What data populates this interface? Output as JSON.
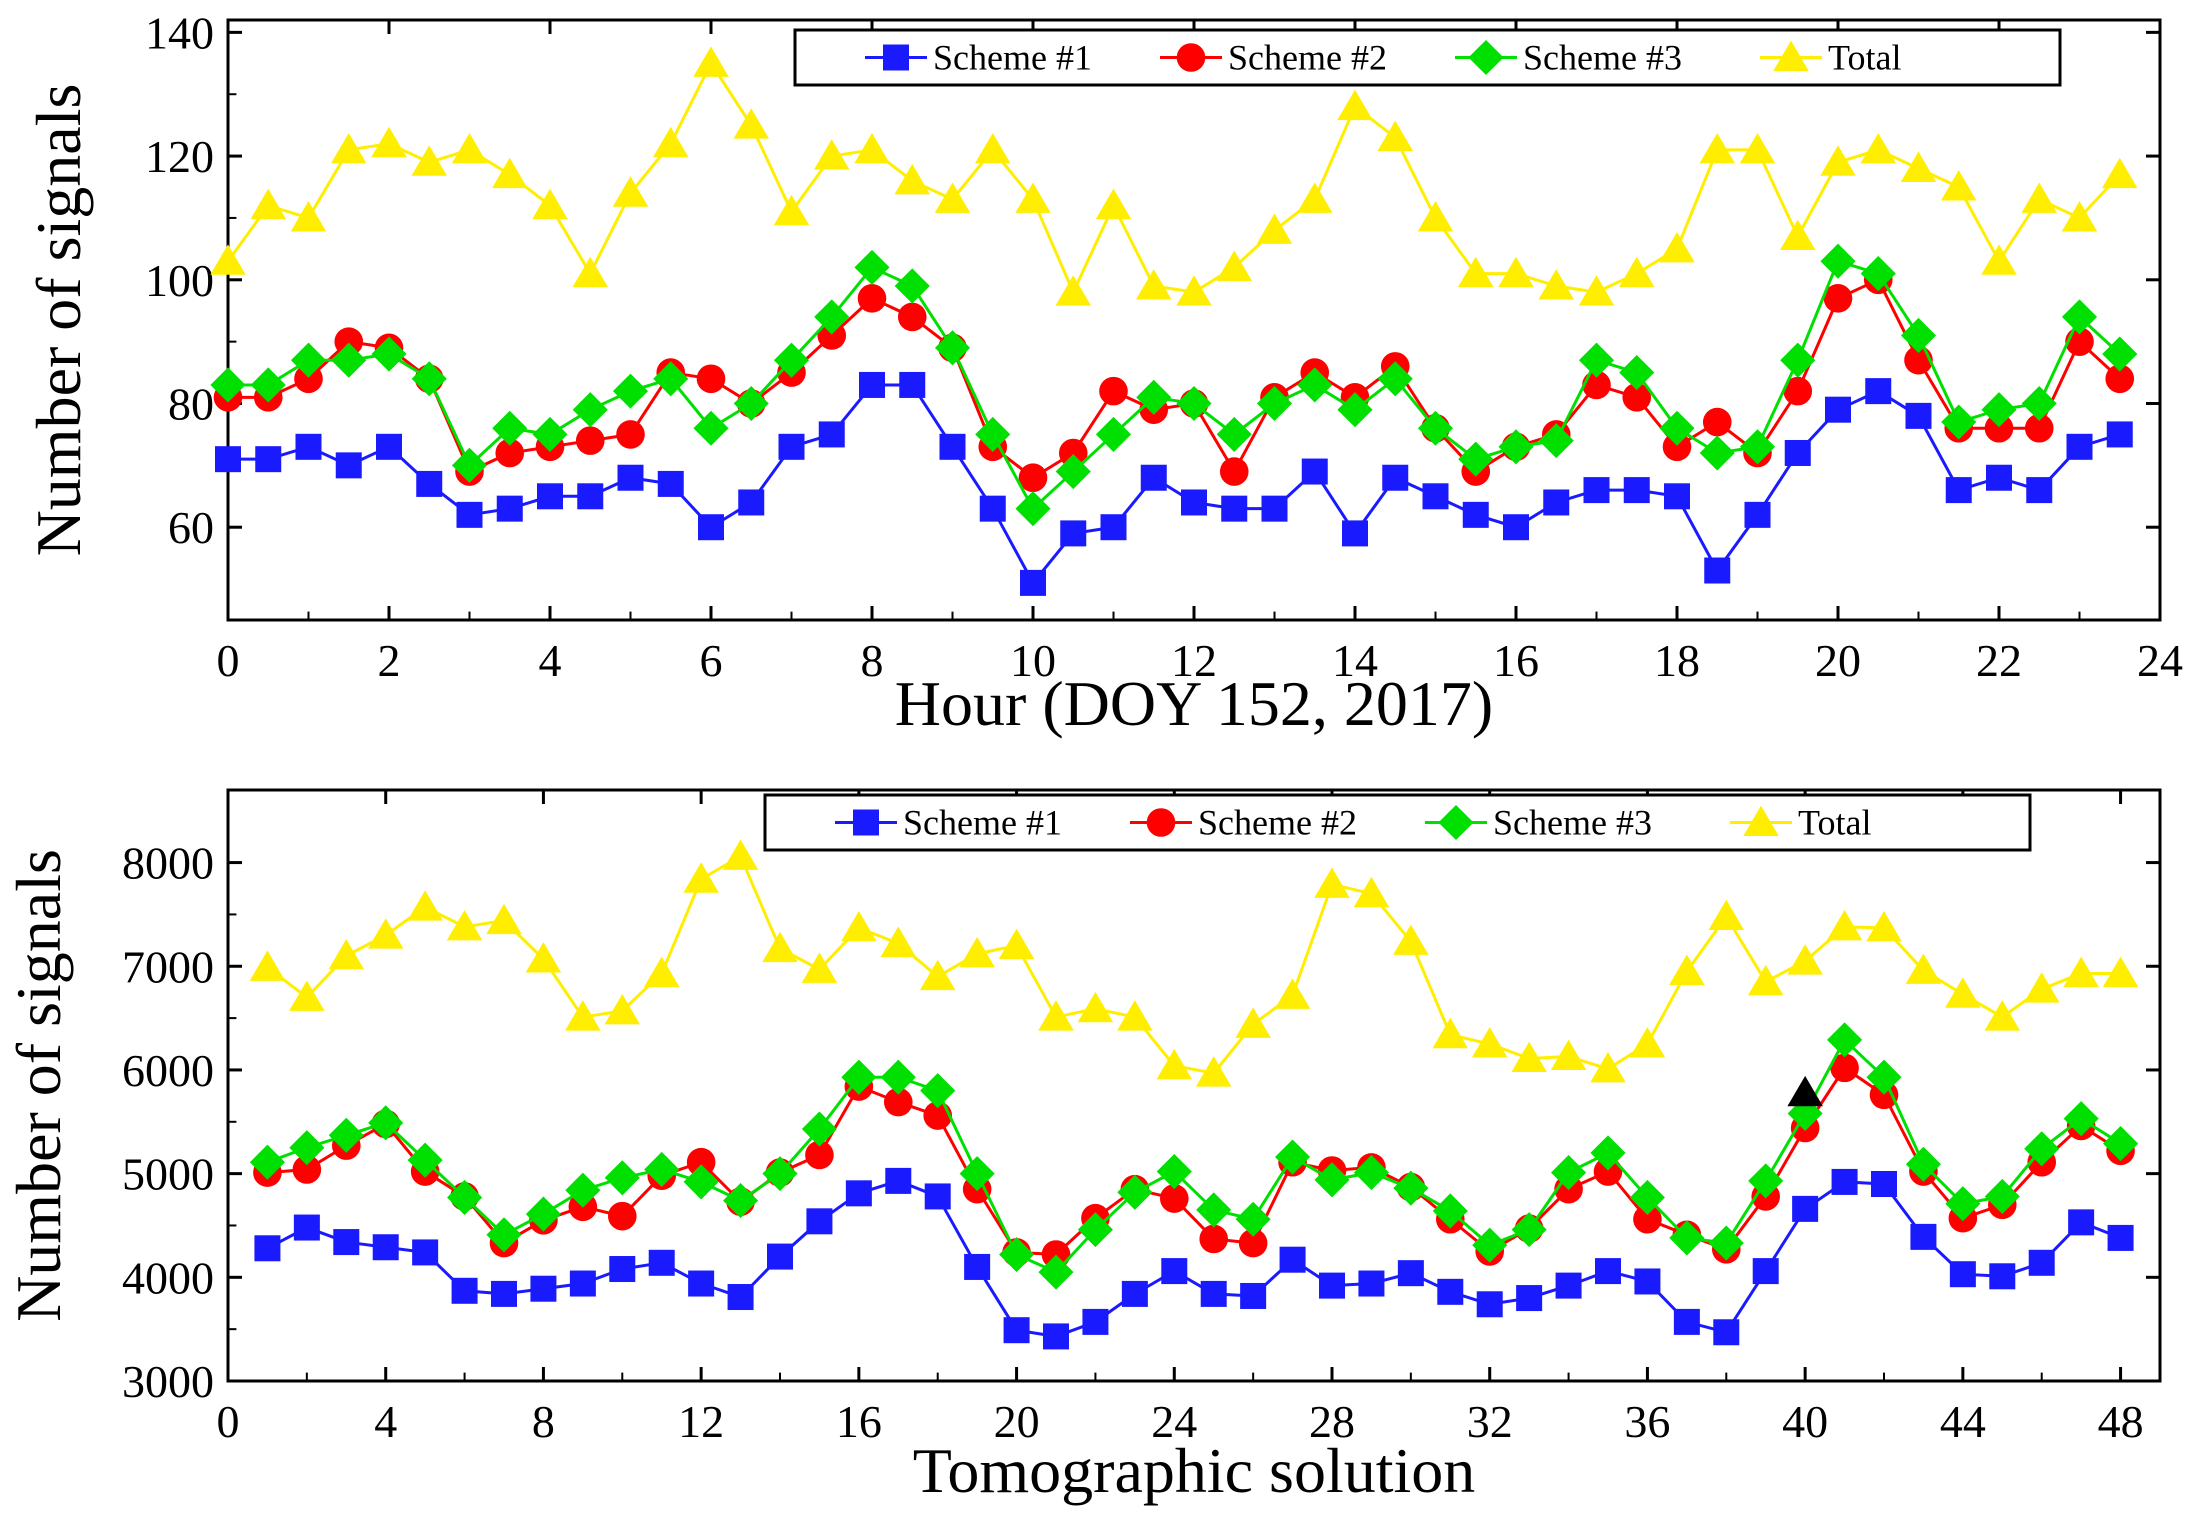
{
  "colors": {
    "scheme1": "#1a1aff",
    "scheme2": "#ff0000",
    "scheme3": "#00e000",
    "total": "#ffee00",
    "annotation": "#000000"
  },
  "chart_data": [
    {
      "type": "line",
      "title": "",
      "xlabel": "Hour (DOY 152, 2017)",
      "ylabel": "Number of signals",
      "xlim": [
        0,
        24
      ],
      "ylim": [
        45,
        142
      ],
      "xticks": [
        0,
        2,
        4,
        6,
        8,
        10,
        12,
        14,
        16,
        18,
        20,
        22,
        24
      ],
      "yticks": [
        60,
        80,
        100,
        120,
        140
      ],
      "legend_position": "top-right",
      "x": [
        0,
        0.5,
        1,
        1.5,
        2,
        2.5,
        3,
        3.5,
        4,
        4.5,
        5,
        5.5,
        6,
        6.5,
        7,
        7.5,
        8,
        8.5,
        9,
        9.5,
        10,
        10.5,
        11,
        11.5,
        12,
        12.5,
        13,
        13.5,
        14,
        14.5,
        15,
        15.5,
        16,
        16.5,
        17,
        17.5,
        18,
        18.5,
        19,
        19.5,
        20,
        20.5,
        21,
        21.5,
        22,
        22.5,
        23,
        23.5
      ],
      "series": [
        {
          "name": "Scheme #1",
          "marker": "square",
          "color_key": "scheme1",
          "values": [
            71,
            71,
            73,
            70,
            73,
            67,
            62,
            63,
            65,
            65,
            68,
            67,
            60,
            64,
            73,
            75,
            83,
            83,
            73,
            63,
            51,
            59,
            60,
            68,
            64,
            63,
            63,
            69,
            59,
            68,
            65,
            62,
            60,
            64,
            66,
            66,
            65,
            53,
            62,
            72,
            79,
            82,
            78,
            66,
            68,
            66,
            73,
            75
          ]
        },
        {
          "name": "Scheme #2",
          "marker": "circle",
          "color_key": "scheme2",
          "values": [
            81,
            81,
            84,
            90,
            89,
            84,
            69,
            72,
            73,
            74,
            75,
            85,
            84,
            80,
            85,
            91,
            97,
            94,
            89,
            73,
            68,
            72,
            82,
            79,
            80,
            69,
            81,
            85,
            81,
            86,
            76,
            69,
            73,
            75,
            83,
            81,
            73,
            77,
            72,
            82,
            97,
            100,
            87,
            76,
            76,
            76,
            90,
            84
          ]
        },
        {
          "name": "Scheme #3",
          "marker": "diamond",
          "color_key": "scheme3",
          "values": [
            83,
            83,
            87,
            87,
            88,
            84,
            70,
            76,
            75,
            79,
            82,
            84,
            76,
            80,
            87,
            94,
            102,
            99,
            89,
            75,
            63,
            69,
            75,
            81,
            80,
            75,
            80,
            83,
            79,
            84,
            76,
            71,
            73,
            74,
            87,
            85,
            76,
            72,
            73,
            87,
            103,
            101,
            91,
            77,
            79,
            80,
            94,
            88
          ]
        },
        {
          "name": "Total",
          "marker": "triangle",
          "color_key": "total",
          "values": [
            103,
            112,
            110,
            121,
            122,
            119,
            121,
            117,
            112,
            101,
            114,
            122,
            135,
            125,
            111,
            120,
            121,
            116,
            113,
            121,
            113,
            98,
            112,
            99,
            98,
            102,
            108,
            113,
            128,
            123,
            110,
            101,
            101,
            99,
            98,
            101,
            105,
            121,
            121,
            107,
            119,
            121,
            118,
            115,
            103,
            113,
            110,
            117
          ]
        }
      ]
    },
    {
      "type": "line",
      "title": "",
      "xlabel": "Tomographic solution",
      "ylabel": "Number of signals",
      "xlim": [
        0,
        49
      ],
      "ylim": [
        3000,
        8700
      ],
      "xticks": [
        0,
        4,
        8,
        12,
        16,
        20,
        24,
        28,
        32,
        36,
        40,
        44,
        48
      ],
      "yticks": [
        3000,
        4000,
        5000,
        6000,
        7000,
        8000
      ],
      "legend_position": "top-right",
      "x": [
        1,
        2,
        3,
        4,
        5,
        6,
        7,
        8,
        9,
        10,
        11,
        12,
        13,
        14,
        15,
        16,
        17,
        18,
        19,
        20,
        21,
        22,
        23,
        24,
        25,
        26,
        27,
        28,
        29,
        30,
        31,
        32,
        33,
        34,
        35,
        36,
        37,
        38,
        39,
        40,
        41,
        42,
        43,
        44,
        45,
        46,
        47,
        48
      ],
      "series": [
        {
          "name": "Scheme #1",
          "marker": "square",
          "color_key": "scheme1",
          "values": [
            4280,
            4480,
            4340,
            4290,
            4240,
            3870,
            3840,
            3890,
            3940,
            4080,
            4140,
            3940,
            3810,
            4200,
            4540,
            4810,
            4930,
            4780,
            4100,
            3490,
            3430,
            3570,
            3840,
            4060,
            3840,
            3820,
            4170,
            3920,
            3940,
            4040,
            3860,
            3740,
            3800,
            3920,
            4060,
            3960,
            3570,
            3470,
            4060,
            4660,
            4920,
            4900,
            4390,
            4030,
            4010,
            4140,
            4530,
            4380
          ]
        },
        {
          "name": "Scheme #2",
          "marker": "circle",
          "color_key": "scheme2",
          "values": [
            5010,
            5040,
            5270,
            5480,
            5020,
            4780,
            4330,
            4550,
            4680,
            4590,
            4980,
            5110,
            4730,
            5010,
            5180,
            5840,
            5690,
            5560,
            4850,
            4240,
            4220,
            4570,
            4850,
            4760,
            4370,
            4330,
            5110,
            5030,
            5060,
            4870,
            4560,
            4250,
            4470,
            4850,
            5020,
            4560,
            4410,
            4270,
            4780,
            5440,
            6020,
            5760,
            5020,
            4570,
            4700,
            5110,
            5460,
            5220
          ]
        },
        {
          "name": "Scheme #3",
          "marker": "diamond",
          "color_key": "scheme3",
          "values": [
            5110,
            5250,
            5370,
            5490,
            5130,
            4770,
            4410,
            4610,
            4840,
            4960,
            5040,
            4920,
            4740,
            5000,
            5430,
            5930,
            5930,
            5800,
            5000,
            4220,
            4050,
            4460,
            4820,
            5020,
            4650,
            4560,
            5160,
            4940,
            5010,
            4860,
            4640,
            4310,
            4460,
            5010,
            5200,
            4770,
            4380,
            4330,
            4930,
            5580,
            6290,
            5930,
            5090,
            4710,
            4780,
            5240,
            5530,
            5290
          ]
        },
        {
          "name": "Total",
          "marker": "triangle",
          "color_key": "total",
          "values": [
            6990,
            6700,
            7100,
            7300,
            7570,
            7380,
            7440,
            7070,
            6510,
            6570,
            6930,
            7840,
            8060,
            7170,
            6970,
            7370,
            7220,
            6900,
            7120,
            7200,
            6510,
            6590,
            6510,
            6040,
            5970,
            6440,
            6720,
            7790,
            7700,
            7240,
            6340,
            6250,
            6110,
            6130,
            6010,
            6250,
            6950,
            7480,
            6850,
            7050,
            7380,
            7370,
            6960,
            6730,
            6510,
            6780,
            6930,
            6930
          ]
        }
      ],
      "annotations": [
        {
          "type": "marker",
          "shape": "triangle",
          "color_key": "annotation",
          "x": 40,
          "y": 5780
        }
      ]
    }
  ]
}
